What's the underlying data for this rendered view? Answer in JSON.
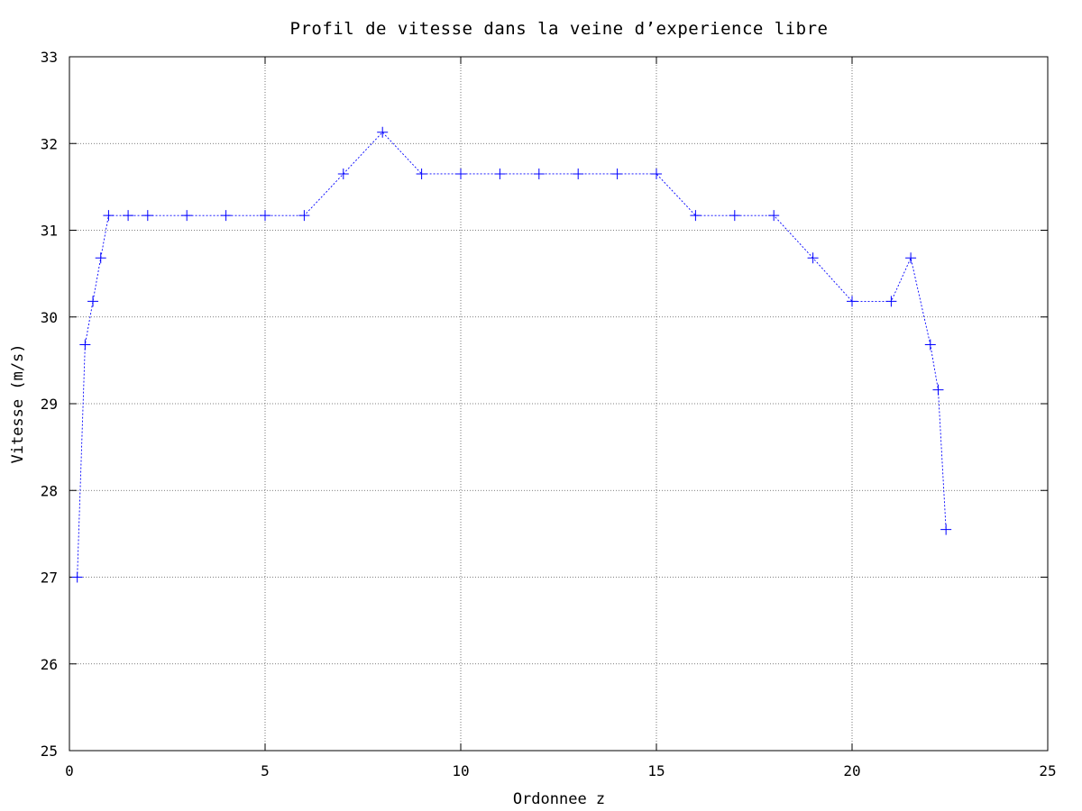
{
  "chart_data": {
    "type": "line",
    "title": "Profil de vitesse dans la veine d’experience libre",
    "xlabel": "Ordonnee z",
    "ylabel": "Vitesse (m/s)",
    "xlim": [
      0,
      25
    ],
    "ylim": [
      25,
      33
    ],
    "xticks": [
      0,
      5,
      10,
      15,
      20,
      25
    ],
    "yticks": [
      25,
      26,
      27,
      28,
      29,
      30,
      31,
      32,
      33
    ],
    "grid": true,
    "marker": "plus",
    "line_style": "dotted",
    "series_color": "#0000ff",
    "series": [
      {
        "x": [
          0.2,
          0.4,
          0.6,
          0.8,
          1,
          1.5,
          2,
          3,
          4,
          5,
          6,
          7,
          8,
          9,
          10,
          11,
          12,
          13,
          14,
          15,
          16,
          17,
          18,
          19,
          20,
          21,
          21.5,
          22,
          22.2,
          22.4
        ],
        "y": [
          27.0,
          29.68,
          30.18,
          30.68,
          31.17,
          31.17,
          31.17,
          31.17,
          31.17,
          31.17,
          31.17,
          31.65,
          32.13,
          31.65,
          31.65,
          31.65,
          31.65,
          31.65,
          31.65,
          31.65,
          31.17,
          31.17,
          31.17,
          30.68,
          30.18,
          30.18,
          30.68,
          29.68,
          29.16,
          27.55
        ]
      }
    ]
  }
}
